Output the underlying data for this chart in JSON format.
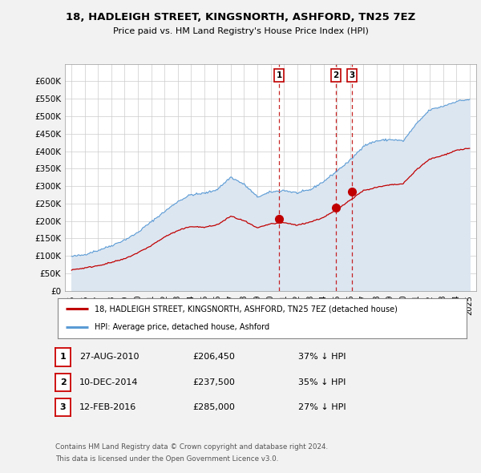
{
  "title": "18, HADLEIGH STREET, KINGSNORTH, ASHFORD, TN25 7EZ",
  "subtitle": "Price paid vs. HM Land Registry's House Price Index (HPI)",
  "ylabel_ticks": [
    "£0",
    "£50K",
    "£100K",
    "£150K",
    "£200K",
    "£250K",
    "£300K",
    "£350K",
    "£400K",
    "£450K",
    "£500K",
    "£550K",
    "£600K"
  ],
  "ytick_vals": [
    0,
    50000,
    100000,
    150000,
    200000,
    250000,
    300000,
    350000,
    400000,
    450000,
    500000,
    550000,
    600000
  ],
  "ylim": [
    0,
    650000
  ],
  "hpi_color": "#5b9bd5",
  "hpi_fill_color": "#dce6f1",
  "price_color": "#c00000",
  "vline_color": "#c00000",
  "transactions": [
    {
      "date_num": 2010.65,
      "price": 206450,
      "label": "1"
    },
    {
      "date_num": 2014.94,
      "price": 237500,
      "label": "2"
    },
    {
      "date_num": 2016.12,
      "price": 285000,
      "label": "3"
    }
  ],
  "legend_price_label": "18, HADLEIGH STREET, KINGSNORTH, ASHFORD, TN25 7EZ (detached house)",
  "legend_hpi_label": "HPI: Average price, detached house, Ashford",
  "table_rows": [
    {
      "num": "1",
      "date": "27-AUG-2010",
      "price": "£206,450",
      "pct": "37% ↓ HPI"
    },
    {
      "num": "2",
      "date": "10-DEC-2014",
      "price": "£237,500",
      "pct": "35% ↓ HPI"
    },
    {
      "num": "3",
      "date": "12-FEB-2016",
      "price": "£285,000",
      "pct": "27% ↓ HPI"
    }
  ],
  "footer1": "Contains HM Land Registry data © Crown copyright and database right 2024.",
  "footer2": "This data is licensed under the Open Government Licence v3.0.",
  "background_color": "#f2f2f2",
  "plot_bg_color": "#ffffff",
  "xlim_start": 1994.5,
  "xlim_end": 2025.5,
  "xtick_years": [
    1995,
    1996,
    1997,
    1998,
    1999,
    2000,
    2001,
    2002,
    2003,
    2004,
    2005,
    2006,
    2007,
    2008,
    2009,
    2010,
    2011,
    2012,
    2013,
    2014,
    2015,
    2016,
    2017,
    2018,
    2019,
    2020,
    2021,
    2022,
    2023,
    2024,
    2025
  ],
  "hpi_anchors_t": [
    1995.0,
    1996.0,
    1997.0,
    1998.0,
    1999.0,
    2000.0,
    2001.0,
    2002.0,
    2003.0,
    2004.0,
    2005.0,
    2006.0,
    2007.0,
    2008.0,
    2009.0,
    2010.0,
    2011.0,
    2012.0,
    2013.0,
    2014.0,
    2015.0,
    2016.0,
    2017.0,
    2018.0,
    2019.0,
    2020.0,
    2021.0,
    2022.0,
    2023.0,
    2024.0,
    2025.0
  ],
  "hpi_anchors_v": [
    98000,
    103000,
    115000,
    128000,
    145000,
    165000,
    195000,
    225000,
    255000,
    275000,
    278000,
    290000,
    325000,
    305000,
    270000,
    285000,
    290000,
    282000,
    292000,
    315000,
    345000,
    375000,
    415000,
    430000,
    435000,
    430000,
    480000,
    520000,
    530000,
    545000,
    550000
  ],
  "price_anchors_t": [
    1995.0,
    1996.0,
    1997.0,
    1998.0,
    1999.0,
    2000.0,
    2001.0,
    2002.0,
    2003.0,
    2004.0,
    2005.0,
    2006.0,
    2007.0,
    2008.0,
    2009.0,
    2010.0,
    2011.0,
    2012.0,
    2013.0,
    2014.0,
    2015.0,
    2016.0,
    2017.0,
    2018.0,
    2019.0,
    2020.0,
    2021.0,
    2022.0,
    2023.0,
    2024.0,
    2025.0
  ],
  "price_anchors_v": [
    60000,
    65000,
    72000,
    80000,
    90000,
    107000,
    128000,
    152000,
    170000,
    183000,
    180000,
    188000,
    212000,
    198000,
    178000,
    190000,
    193000,
    186000,
    195000,
    208000,
    230000,
    258000,
    285000,
    295000,
    302000,
    305000,
    345000,
    375000,
    385000,
    400000,
    405000
  ]
}
